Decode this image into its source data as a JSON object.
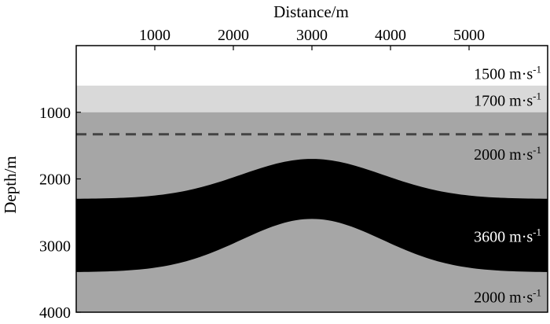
{
  "figure": {
    "x_axis": {
      "title": "Distance/m",
      "position": "top",
      "range": [
        0,
        6000
      ],
      "ticks": [
        {
          "value": 1000,
          "label": "1000"
        },
        {
          "value": 2000,
          "label": "2000"
        },
        {
          "value": 3000,
          "label": "3000"
        },
        {
          "value": 4000,
          "label": "4000"
        },
        {
          "value": 5000,
          "label": "5000"
        }
      ]
    },
    "y_axis": {
      "title": "Depth/m",
      "range": [
        0,
        4000
      ],
      "ticks": [
        {
          "value": 1000,
          "label": "1000"
        },
        {
          "value": 2000,
          "label": "2000"
        },
        {
          "value": 3000,
          "label": "3000"
        },
        {
          "value": 4000,
          "label": "4000"
        }
      ]
    },
    "layers": [
      {
        "name": "layer-1",
        "velocity_label": "1500 m·s",
        "exp": "-1",
        "top_depth": 0,
        "bottom_depth": 600,
        "color": "#ffffff",
        "label_depth": 420,
        "label_color": "#000000"
      },
      {
        "name": "layer-2",
        "velocity_label": "1700 m·s",
        "exp": "-1",
        "top_depth": 600,
        "bottom_depth": 1000,
        "color": "#d9d9d9",
        "label_depth": 820,
        "label_color": "#000000"
      },
      {
        "name": "layer-3",
        "velocity_label": "2000 m·s",
        "exp": "-1",
        "top_depth": 1000,
        "bottom_depth": null,
        "color": "#a6a6a6",
        "label_depth": 1630,
        "label_color": "#000000"
      },
      {
        "name": "layer-4",
        "velocity_label": "3600 m·s",
        "exp": "-1",
        "top_depth": null,
        "bottom_depth": null,
        "color": "#000000",
        "label_depth": 2860,
        "label_color": "#ffffff"
      },
      {
        "name": "layer-5",
        "velocity_label": "2000 m·s",
        "exp": "-1",
        "top_depth": null,
        "bottom_depth": 4000,
        "color": "#a6a6a6",
        "label_depth": 3770,
        "label_color": "#000000"
      }
    ],
    "dashed_line": {
      "depth": 1330,
      "color": "#444444"
    },
    "anticline": {
      "top_flank_depth": 2300,
      "top_crest_depth": 1700,
      "bottom_flank_depth": 3400,
      "bottom_crest_depth": 2600,
      "crest_x": 3000
    }
  }
}
